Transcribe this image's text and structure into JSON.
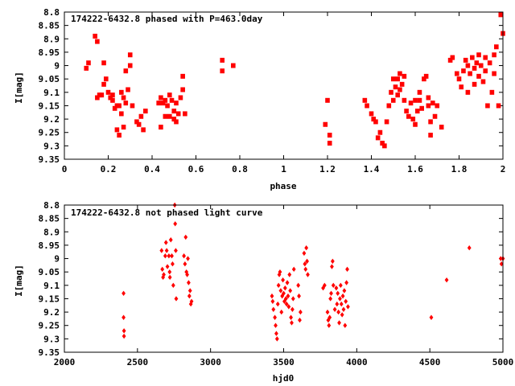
{
  "chart_data": [
    {
      "type": "scatter",
      "title": "174222-6432.8 phased with P=463.0day",
      "xlabel": "phase",
      "ylabel": "I[mag]",
      "xlim": [
        0,
        2
      ],
      "ylim": [
        8.8,
        9.35
      ],
      "y_inverted": true,
      "marker": "filled-square",
      "color": "#ff0000",
      "xticks": [
        "0",
        "0.2",
        "0.4",
        "0.6",
        "0.8",
        "1",
        "1.2",
        "1.4",
        "1.6",
        "1.8",
        "2"
      ],
      "yticks": [
        "8.8",
        "8.85",
        "8.9",
        "8.95",
        "9",
        "9.05",
        "9.1",
        "9.15",
        "9.2",
        "9.25",
        "9.3",
        "9.35"
      ],
      "points": [
        [
          0.1,
          9.01
        ],
        [
          0.11,
          8.99
        ],
        [
          0.14,
          8.89
        ],
        [
          0.15,
          8.91
        ],
        [
          0.15,
          9.12
        ],
        [
          0.16,
          9.11
        ],
        [
          0.17,
          9.11
        ],
        [
          0.18,
          8.99
        ],
        [
          0.18,
          9.07
        ],
        [
          0.19,
          9.05
        ],
        [
          0.2,
          9.1
        ],
        [
          0.21,
          9.12
        ],
        [
          0.22,
          9.11
        ],
        [
          0.22,
          9.13
        ],
        [
          0.23,
          9.16
        ],
        [
          0.24,
          9.15
        ],
        [
          0.24,
          9.24
        ],
        [
          0.25,
          9.26
        ],
        [
          0.25,
          9.15
        ],
        [
          0.26,
          9.18
        ],
        [
          0.26,
          9.1
        ],
        [
          0.27,
          9.12
        ],
        [
          0.27,
          9.23
        ],
        [
          0.28,
          9.02
        ],
        [
          0.28,
          9.14
        ],
        [
          0.29,
          9.09
        ],
        [
          0.3,
          8.96
        ],
        [
          0.3,
          9.0
        ],
        [
          0.31,
          9.15
        ],
        [
          0.33,
          9.21
        ],
        [
          0.34,
          9.22
        ],
        [
          0.35,
          9.19
        ],
        [
          0.36,
          9.24
        ],
        [
          0.37,
          9.17
        ],
        [
          0.43,
          9.14
        ],
        [
          0.44,
          9.12
        ],
        [
          0.44,
          9.23
        ],
        [
          0.45,
          9.14
        ],
        [
          0.46,
          9.13
        ],
        [
          0.46,
          9.19
        ],
        [
          0.47,
          9.15
        ],
        [
          0.48,
          9.11
        ],
        [
          0.48,
          9.19
        ],
        [
          0.49,
          9.13
        ],
        [
          0.5,
          9.17
        ],
        [
          0.5,
          9.2
        ],
        [
          0.51,
          9.14
        ],
        [
          0.51,
          9.21
        ],
        [
          0.52,
          9.18
        ],
        [
          0.53,
          9.12
        ],
        [
          0.54,
          9.04
        ],
        [
          0.54,
          9.09
        ],
        [
          0.55,
          9.18
        ],
        [
          0.72,
          8.98
        ],
        [
          0.72,
          9.02
        ],
        [
          0.77,
          9.0
        ],
        [
          1.19,
          9.22
        ],
        [
          1.2,
          9.13
        ],
        [
          1.21,
          9.26
        ],
        [
          1.21,
          9.29
        ],
        [
          1.37,
          9.13
        ],
        [
          1.38,
          9.15
        ],
        [
          1.4,
          9.18
        ],
        [
          1.41,
          9.2
        ],
        [
          1.42,
          9.21
        ],
        [
          1.43,
          9.27
        ],
        [
          1.44,
          9.25
        ],
        [
          1.45,
          9.29
        ],
        [
          1.46,
          9.3
        ],
        [
          1.47,
          9.21
        ],
        [
          1.48,
          9.15
        ],
        [
          1.49,
          9.1
        ],
        [
          1.5,
          9.05
        ],
        [
          1.5,
          9.13
        ],
        [
          1.51,
          9.08
        ],
        [
          1.52,
          9.05
        ],
        [
          1.52,
          9.11
        ],
        [
          1.53,
          9.03
        ],
        [
          1.53,
          9.09
        ],
        [
          1.54,
          9.07
        ],
        [
          1.55,
          9.04
        ],
        [
          1.55,
          9.13
        ],
        [
          1.56,
          9.17
        ],
        [
          1.57,
          9.19
        ],
        [
          1.58,
          9.14
        ],
        [
          1.59,
          9.2
        ],
        [
          1.6,
          9.13
        ],
        [
          1.6,
          9.22
        ],
        [
          1.61,
          9.17
        ],
        [
          1.62,
          9.13
        ],
        [
          1.62,
          9.1
        ],
        [
          1.63,
          9.16
        ],
        [
          1.64,
          9.05
        ],
        [
          1.65,
          9.04
        ],
        [
          1.66,
          9.12
        ],
        [
          1.66,
          9.15
        ],
        [
          1.67,
          9.21
        ],
        [
          1.67,
          9.26
        ],
        [
          1.68,
          9.14
        ],
        [
          1.69,
          9.19
        ],
        [
          1.7,
          9.15
        ],
        [
          1.72,
          9.23
        ],
        [
          1.76,
          8.98
        ],
        [
          1.77,
          8.97
        ],
        [
          1.79,
          9.03
        ],
        [
          1.8,
          9.05
        ],
        [
          1.81,
          9.08
        ],
        [
          1.82,
          9.02
        ],
        [
          1.83,
          8.98
        ],
        [
          1.84,
          9.0
        ],
        [
          1.84,
          9.1
        ],
        [
          1.85,
          9.03
        ],
        [
          1.86,
          8.97
        ],
        [
          1.87,
          9.01
        ],
        [
          1.87,
          9.07
        ],
        [
          1.88,
          8.99
        ],
        [
          1.89,
          8.96
        ],
        [
          1.89,
          9.04
        ],
        [
          1.9,
          9.0
        ],
        [
          1.91,
          9.06
        ],
        [
          1.92,
          8.97
        ],
        [
          1.92,
          9.02
        ],
        [
          1.93,
          9.15
        ],
        [
          1.94,
          8.99
        ],
        [
          1.95,
          9.1
        ],
        [
          1.96,
          8.96
        ],
        [
          1.96,
          9.03
        ],
        [
          1.97,
          8.93
        ],
        [
          1.98,
          9.15
        ],
        [
          1.99,
          8.81
        ],
        [
          2.0,
          8.88
        ]
      ]
    },
    {
      "type": "scatter",
      "title": "174222-6432.8 not phased light curve",
      "xlabel": "hjd0",
      "ylabel": "I[mag]",
      "xlim": [
        2000,
        5000
      ],
      "ylim": [
        8.8,
        9.35
      ],
      "y_inverted": true,
      "marker": "filled-diamond",
      "color": "#ff0000",
      "xticks": [
        "2000",
        "2500",
        "3000",
        "3500",
        "4000",
        "4500",
        "5000"
      ],
      "yticks": [
        "8.8",
        "8.85",
        "8.9",
        "8.95",
        "9",
        "9.05",
        "9.1",
        "9.15",
        "9.2",
        "9.25",
        "9.3",
        "9.35"
      ],
      "points": [
        [
          2405,
          9.13
        ],
        [
          2405,
          9.22
        ],
        [
          2408,
          9.27
        ],
        [
          2408,
          9.29
        ],
        [
          2665,
          8.97
        ],
        [
          2670,
          9.04
        ],
        [
          2675,
          9.07
        ],
        [
          2680,
          9.06
        ],
        [
          2690,
          8.99
        ],
        [
          2695,
          8.94
        ],
        [
          2700,
          8.97
        ],
        [
          2705,
          9.03
        ],
        [
          2715,
          8.99
        ],
        [
          2720,
          9.05
        ],
        [
          2722,
          9.07
        ],
        [
          2728,
          8.93
        ],
        [
          2735,
          8.99
        ],
        [
          2740,
          9.02
        ],
        [
          2745,
          9.1
        ],
        [
          2755,
          8.8
        ],
        [
          2758,
          8.87
        ],
        [
          2762,
          8.97
        ],
        [
          2765,
          9.15
        ],
        [
          2818,
          8.99
        ],
        [
          2825,
          9.02
        ],
        [
          2830,
          8.92
        ],
        [
          2835,
          9.05
        ],
        [
          2840,
          9.06
        ],
        [
          2845,
          9.0
        ],
        [
          2850,
          9.09
        ],
        [
          2855,
          9.14
        ],
        [
          2860,
          9.12
        ],
        [
          2865,
          9.17
        ],
        [
          2870,
          9.16
        ],
        [
          3420,
          9.14
        ],
        [
          3425,
          9.16
        ],
        [
          3430,
          9.19
        ],
        [
          3440,
          9.22
        ],
        [
          3445,
          9.25
        ],
        [
          3450,
          9.28
        ],
        [
          3455,
          9.3
        ],
        [
          3460,
          9.17
        ],
        [
          3465,
          9.1
        ],
        [
          3470,
          9.06
        ],
        [
          3475,
          9.05
        ],
        [
          3480,
          9.12
        ],
        [
          3485,
          9.2
        ],
        [
          3490,
          9.14
        ],
        [
          3495,
          9.08
        ],
        [
          3500,
          9.13
        ],
        [
          3505,
          9.16
        ],
        [
          3510,
          9.11
        ],
        [
          3515,
          9.15
        ],
        [
          3520,
          9.17
        ],
        [
          3525,
          9.09
        ],
        [
          3530,
          9.14
        ],
        [
          3535,
          9.18
        ],
        [
          3540,
          9.06
        ],
        [
          3545,
          9.12
        ],
        [
          3550,
          9.22
        ],
        [
          3555,
          9.24
        ],
        [
          3560,
          9.19
        ],
        [
          3565,
          9.15
        ],
        [
          3570,
          9.04
        ],
        [
          3600,
          9.1
        ],
        [
          3605,
          9.14
        ],
        [
          3610,
          9.23
        ],
        [
          3615,
          9.2
        ],
        [
          3640,
          8.98
        ],
        [
          3645,
          9.02
        ],
        [
          3650,
          9.04
        ],
        [
          3655,
          8.96
        ],
        [
          3660,
          9.01
        ],
        [
          3665,
          9.06
        ],
        [
          3770,
          9.11
        ],
        [
          3780,
          9.1
        ],
        [
          3800,
          9.2
        ],
        [
          3805,
          9.23
        ],
        [
          3810,
          9.25
        ],
        [
          3815,
          9.22
        ],
        [
          3820,
          9.15
        ],
        [
          3825,
          9.13
        ],
        [
          3830,
          9.03
        ],
        [
          3835,
          9.01
        ],
        [
          3840,
          9.1
        ],
        [
          3850,
          9.19
        ],
        [
          3860,
          9.11
        ],
        [
          3865,
          9.17
        ],
        [
          3870,
          9.13
        ],
        [
          3875,
          9.2
        ],
        [
          3880,
          9.24
        ],
        [
          3885,
          9.15
        ],
        [
          3890,
          9.1
        ],
        [
          3895,
          9.17
        ],
        [
          3900,
          9.21
        ],
        [
          3905,
          9.14
        ],
        [
          3910,
          9.19
        ],
        [
          3915,
          9.12
        ],
        [
          3920,
          9.25
        ],
        [
          3925,
          9.16
        ],
        [
          3930,
          9.09
        ],
        [
          3935,
          9.04
        ],
        [
          3940,
          9.18
        ],
        [
          4510,
          9.22
        ],
        [
          4615,
          9.08
        ],
        [
          4770,
          8.96
        ],
        [
          4985,
          9.0
        ],
        [
          4990,
          9.02
        ],
        [
          5000,
          9.0
        ]
      ]
    }
  ]
}
